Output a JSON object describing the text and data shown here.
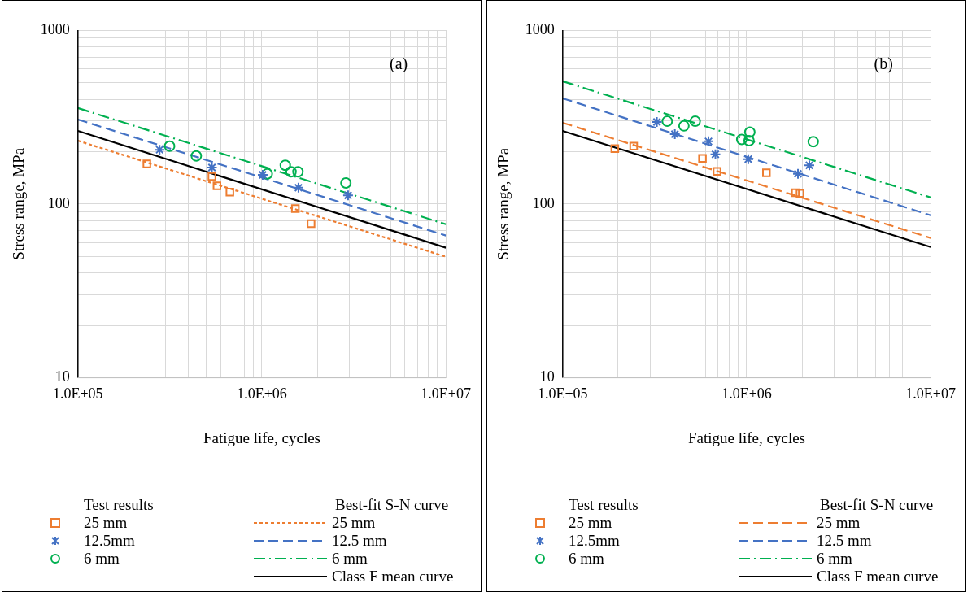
{
  "chart_data": [
    {
      "type": "scatter",
      "xlabel": "Fatigue life, cycles",
      "ylabel": "Stress range, MPa",
      "legend_title": "Test results",
      "annotations": [
        "(a)",
        "Best-fit S-N curve"
      ],
      "log": "xy",
      "grid": true,
      "legend": "bottom",
      "xlim": [
        100000,
        10000000
      ],
      "ylim": [
        10,
        1000
      ],
      "xticks": [
        {
          "value": 100000,
          "label": "1.0E+05"
        },
        {
          "value": 200000,
          "label": null
        },
        {
          "value": 300000,
          "label": null
        },
        {
          "value": 400000,
          "label": null
        },
        {
          "value": 500000,
          "label": null
        },
        {
          "value": 600000,
          "label": null
        },
        {
          "value": 700000,
          "label": null
        },
        {
          "value": 800000,
          "label": null
        },
        {
          "value": 900000,
          "label": null
        },
        {
          "value": 1000000,
          "label": "1.0E+06"
        },
        {
          "value": 2000000,
          "label": null
        },
        {
          "value": 3000000,
          "label": null
        },
        {
          "value": 4000000,
          "label": null
        },
        {
          "value": 5000000,
          "label": null
        },
        {
          "value": 6000000,
          "label": null
        },
        {
          "value": 7000000,
          "label": null
        },
        {
          "value": 8000000,
          "label": null
        },
        {
          "value": 9000000,
          "label": null
        },
        {
          "value": 10000000,
          "label": "1.0E+07"
        }
      ],
      "yticks": [
        10,
        {
          "value": 20,
          "label": null
        },
        {
          "value": 30,
          "label": null
        },
        {
          "value": 40,
          "label": null
        },
        {
          "value": 50,
          "label": null
        },
        {
          "value": 60,
          "label": null
        },
        {
          "value": 70,
          "label": null
        },
        {
          "value": 80,
          "label": null
        },
        {
          "value": 90,
          "label": null
        },
        100,
        {
          "value": 200,
          "label": null
        },
        {
          "value": 300,
          "label": null
        },
        {
          "value": 400,
          "label": null
        },
        {
          "value": 500,
          "label": null
        },
        {
          "value": 600,
          "label": null
        },
        {
          "value": 700,
          "label": null
        },
        {
          "value": 800,
          "label": null
        },
        {
          "value": 900,
          "label": null
        },
        1000
      ],
      "series": [
        {
          "name": "25 mm",
          "marker": "square",
          "color": "#ed7d31",
          "x": [
            237000,
            535000,
            570000,
            670000,
            1520000,
            1850000
          ],
          "values": [
            170,
            144,
            127,
            117,
            94,
            77
          ]
        },
        {
          "name": "12.5mm",
          "marker": "cross",
          "color": "#4472c4",
          "x": [
            278000,
            535000,
            1010000,
            1580000,
            2940000
          ],
          "values": [
            205,
            162,
            147,
            124,
            112
          ]
        },
        {
          "name": "6 mm",
          "marker": "circle",
          "color": "#00b050",
          "x": [
            315000,
            440000,
            1070000,
            1340000,
            1440000,
            1570000,
            2860000
          ],
          "values": [
            215,
            189,
            149,
            167,
            153,
            153,
            132
          ]
        },
        {
          "name": "25 mm",
          "type": "line",
          "marker": "none",
          "line_style": "dotted",
          "color": "#ed7d31",
          "x": [
            100000,
            10000000
          ],
          "values": [
            231,
            49.7
          ]
        },
        {
          "name": "12.5 mm",
          "type": "line",
          "marker": "none",
          "line_style": "dashed",
          "color": "#4472c4",
          "x": [
            100000,
            10000000
          ],
          "values": [
            306,
            65.8
          ]
        },
        {
          "name": "6 mm",
          "type": "line",
          "marker": "none",
          "line_style": "dashdot",
          "color": "#00b050",
          "x": [
            100000,
            10000000
          ],
          "values": [
            356,
            76.4
          ]
        },
        {
          "name": "Class F mean curve",
          "type": "line",
          "marker": "none",
          "line_style": "solid",
          "color": "#000000",
          "x": [
            100000,
            10000000
          ],
          "values": [
            263,
            56
          ]
        }
      ]
    },
    {
      "type": "scatter",
      "xlabel": "Fatigue life, cycles",
      "ylabel": "Stress range, MPa",
      "legend_title": "Test results",
      "annotations": [
        "(b)",
        "Best-fit S-N curve"
      ],
      "log": "xy",
      "grid": true,
      "legend": "bottom",
      "xlim": [
        100000,
        10000000
      ],
      "ylim": [
        10,
        1000
      ],
      "xticks": [
        {
          "value": 100000,
          "label": "1.0E+05"
        },
        {
          "value": 200000,
          "label": null
        },
        {
          "value": 300000,
          "label": null
        },
        {
          "value": 400000,
          "label": null
        },
        {
          "value": 500000,
          "label": null
        },
        {
          "value": 600000,
          "label": null
        },
        {
          "value": 700000,
          "label": null
        },
        {
          "value": 800000,
          "label": null
        },
        {
          "value": 900000,
          "label": null
        },
        {
          "value": 1000000,
          "label": "1.0E+06"
        },
        {
          "value": 2000000,
          "label": null
        },
        {
          "value": 3000000,
          "label": null
        },
        {
          "value": 4000000,
          "label": null
        },
        {
          "value": 5000000,
          "label": null
        },
        {
          "value": 6000000,
          "label": null
        },
        {
          "value": 7000000,
          "label": null
        },
        {
          "value": 8000000,
          "label": null
        },
        {
          "value": 9000000,
          "label": null
        },
        {
          "value": 10000000,
          "label": "1.0E+07"
        }
      ],
      "yticks": [
        10,
        {
          "value": 20,
          "label": null
        },
        {
          "value": 30,
          "label": null
        },
        {
          "value": 40,
          "label": null
        },
        {
          "value": 50,
          "label": null
        },
        {
          "value": 60,
          "label": null
        },
        {
          "value": 70,
          "label": null
        },
        {
          "value": 80,
          "label": null
        },
        {
          "value": 90,
          "label": null
        },
        100,
        {
          "value": 200,
          "label": null
        },
        {
          "value": 300,
          "label": null
        },
        {
          "value": 400,
          "label": null
        },
        {
          "value": 500,
          "label": null
        },
        {
          "value": 600,
          "label": null
        },
        {
          "value": 700,
          "label": null
        },
        {
          "value": 800,
          "label": null
        },
        {
          "value": 900,
          "label": null
        },
        1000
      ],
      "series": [
        {
          "name": "25 mm",
          "marker": "square",
          "color": "#ed7d31",
          "x": [
            192000,
            243000,
            575000,
            690000,
            1280000,
            1840000,
            1950000
          ],
          "values": [
            208,
            215,
            183,
            154,
            151,
            116,
            115
          ]
        },
        {
          "name": "12.5mm",
          "marker": "cross",
          "color": "#4472c4",
          "x": [
            325000,
            407000,
            620000,
            676000,
            1020000,
            1900000,
            2190000
          ],
          "values": [
            296,
            252,
            229,
            193,
            181,
            149,
            167
          ]
        },
        {
          "name": "6 mm",
          "marker": "circle",
          "color": "#00b050",
          "x": [
            370000,
            456000,
            525000,
            940000,
            1040000,
            1030000,
            2300000
          ],
          "values": [
            299,
            281,
            299,
            235,
            259,
            231,
            228
          ]
        },
        {
          "name": "25 mm",
          "type": "line",
          "marker": "none",
          "line_style": "dashed",
          "color": "#ed7d31",
          "x": [
            100000,
            10000000
          ],
          "values": [
            293,
            63.7
          ]
        },
        {
          "name": "12.5 mm",
          "type": "line",
          "marker": "none",
          "line_style": "dashed",
          "color": "#4472c4",
          "x": [
            100000,
            10000000
          ],
          "values": [
            405,
            86
          ]
        },
        {
          "name": "6 mm",
          "type": "line",
          "marker": "none",
          "line_style": "dashdot",
          "color": "#00b050",
          "x": [
            100000,
            10000000
          ],
          "values": [
            508,
            109
          ]
        },
        {
          "name": "Class F mean curve",
          "type": "line",
          "marker": "none",
          "line_style": "solid",
          "color": "#000000",
          "x": [
            100000,
            10000000
          ],
          "values": [
            263,
            56.5
          ]
        }
      ]
    }
  ]
}
